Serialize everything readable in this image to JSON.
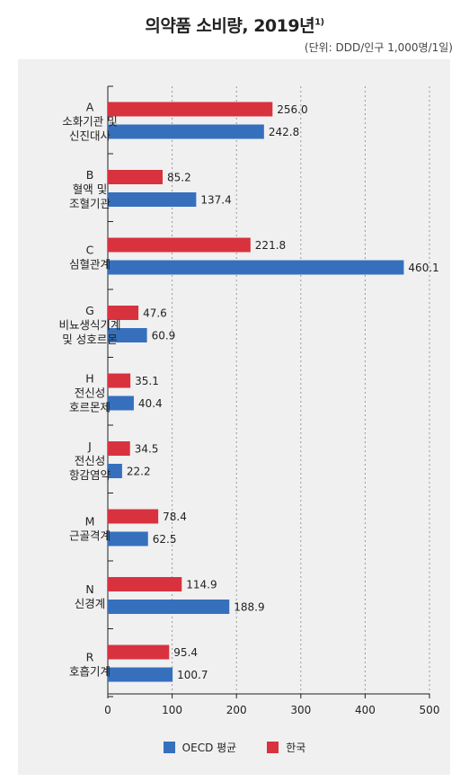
{
  "title": "의약품 소비량, 2019년",
  "title_note": "1)",
  "unit": "(단위: DDD/인구 1,000명/1일)",
  "colors": {
    "oecd": "#3670bd",
    "korea": "#d8323f"
  },
  "chart_data": {
    "type": "bar",
    "orientation": "horizontal",
    "categories": [
      [
        "A",
        "소화기관 및",
        "신진대사"
      ],
      [
        "B",
        "혈액 및",
        "조혈기관"
      ],
      [
        "C",
        "심혈관계"
      ],
      [
        "G",
        "비뇨생식기계",
        "및 성호르몬"
      ],
      [
        "H",
        "전신성",
        "호르몬제"
      ],
      [
        "J",
        "전신성",
        "항감염약"
      ],
      [
        "M",
        "근골격계"
      ],
      [
        "N",
        "신경계"
      ],
      [
        "R",
        "호흡기계"
      ]
    ],
    "series": [
      {
        "name": "한국",
        "values": [
          256.0,
          85.2,
          221.8,
          47.6,
          35.1,
          34.5,
          78.4,
          114.9,
          95.4
        ],
        "labels": [
          "256.0",
          "85.2",
          "221.8",
          "47.6",
          "35.1",
          "34.5",
          "78.4",
          "114.9",
          "95.4"
        ]
      },
      {
        "name": "OECD 평균",
        "values": [
          242.8,
          137.4,
          460.1,
          60.9,
          40.4,
          22.2,
          62.5,
          188.9,
          100.7
        ],
        "labels": [
          "242.8",
          "137.4",
          "460.1",
          "60.9",
          "40.4",
          "22.2",
          "62.5",
          "188.9",
          "100.7"
        ]
      }
    ],
    "xlim": [
      0,
      500
    ],
    "xticks": [
      0,
      100,
      200,
      300,
      400,
      500
    ],
    "grid": "vertical-dotted",
    "legend_position": "bottom",
    "legend": [
      {
        "name": "OECD 평균",
        "color": "#3670bd"
      },
      {
        "name": "한국",
        "color": "#d8323f"
      }
    ]
  }
}
